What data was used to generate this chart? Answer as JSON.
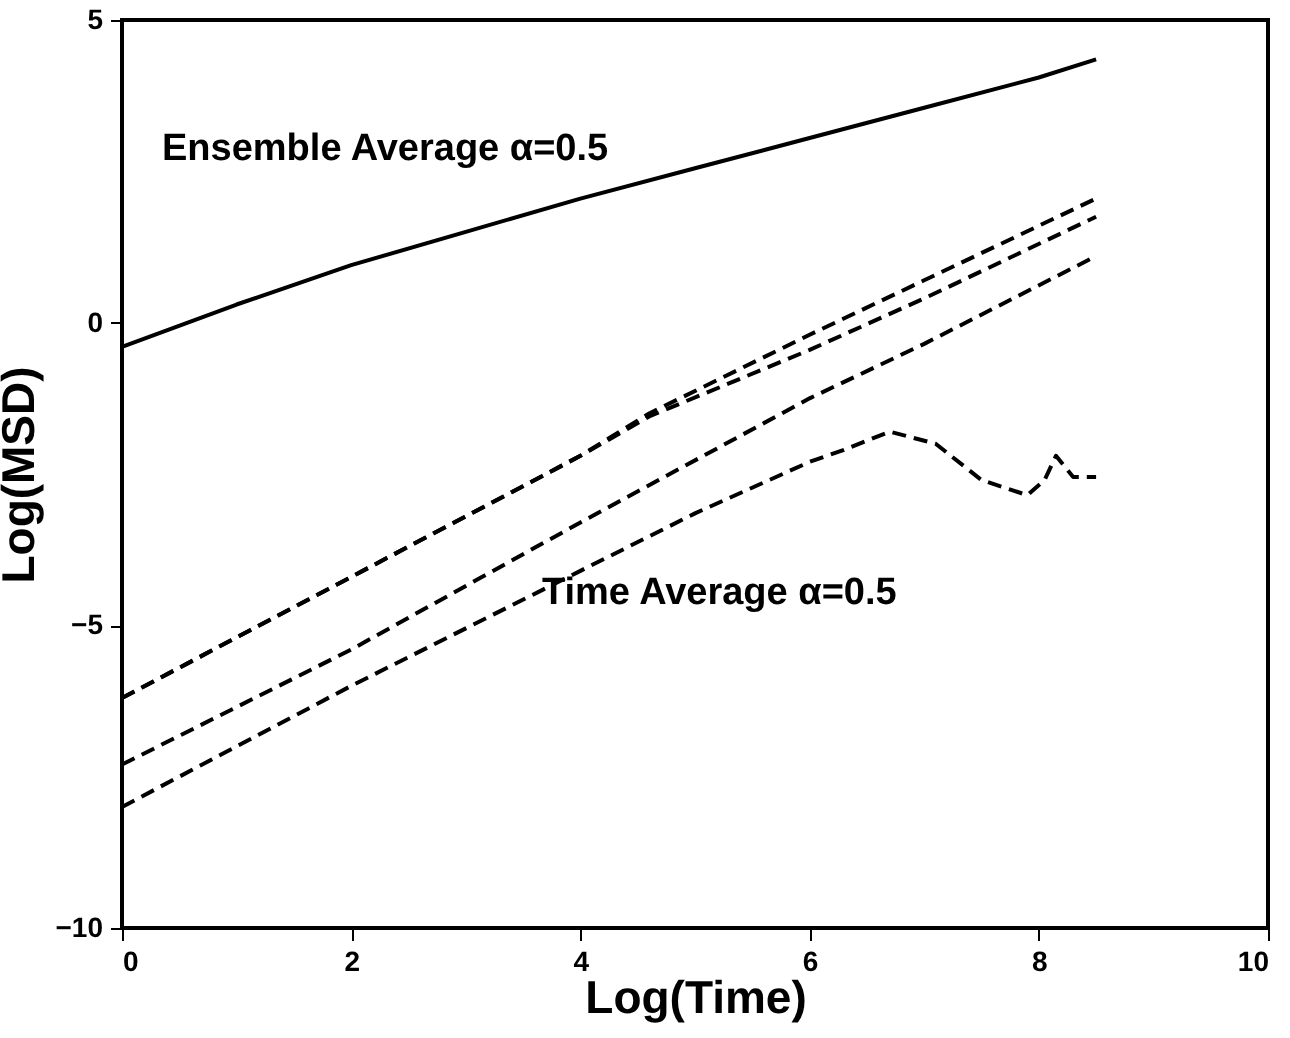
{
  "chart_data": {
    "type": "line",
    "xlabel": "Log(Time)",
    "ylabel": "Log(MSD)",
    "xlim": [
      0,
      10
    ],
    "xticks": [
      0,
      2,
      4,
      6,
      8,
      10
    ],
    "ylim": [
      -10,
      5
    ],
    "yticks": [
      -10,
      -5,
      0,
      5
    ],
    "grid": false,
    "marker": "none",
    "annotations": [
      "Ensemble Average α=0.5",
      "Time Average α=0.5"
    ],
    "series": [
      {
        "color": "#000000",
        "line_style": "solid",
        "x": [
          0,
          1,
          2,
          3,
          4,
          5,
          6,
          7,
          8,
          8.5
        ],
        "values": [
          -0.4,
          0.3,
          0.95,
          1.5,
          2.05,
          2.55,
          3.05,
          3.55,
          4.05,
          4.35
        ]
      },
      {
        "color": "#000000",
        "line_style": "dashed",
        "x": [
          0,
          2,
          4,
          4.6,
          6,
          7,
          8.5
        ],
        "values": [
          -6.2,
          -4.2,
          -2.2,
          -1.5,
          -0.2,
          0.7,
          2.05
        ]
      },
      {
        "color": "#000000",
        "line_style": "dashed",
        "x": [
          0,
          2,
          4,
          4.6,
          6,
          7,
          8.5
        ],
        "values": [
          -6.2,
          -4.2,
          -2.2,
          -1.55,
          -0.45,
          0.4,
          1.75
        ]
      },
      {
        "color": "#000000",
        "line_style": "dashed",
        "x": [
          0,
          2,
          4,
          6,
          7,
          8.5
        ],
        "values": [
          -7.3,
          -5.4,
          -3.3,
          -1.25,
          -0.35,
          1.1
        ]
      },
      {
        "color": "#000000",
        "line_style": "dashed",
        "x": [
          0,
          2,
          4,
          5,
          6,
          6.3,
          6.7,
          7.1,
          7.5,
          7.9,
          8.05,
          8.15,
          8.3,
          8.5
        ],
        "values": [
          -8.0,
          -6.0,
          -4.1,
          -3.15,
          -2.3,
          -2.1,
          -1.8,
          -2.0,
          -2.6,
          -2.85,
          -2.6,
          -2.2,
          -2.55,
          -2.55
        ]
      }
    ]
  }
}
